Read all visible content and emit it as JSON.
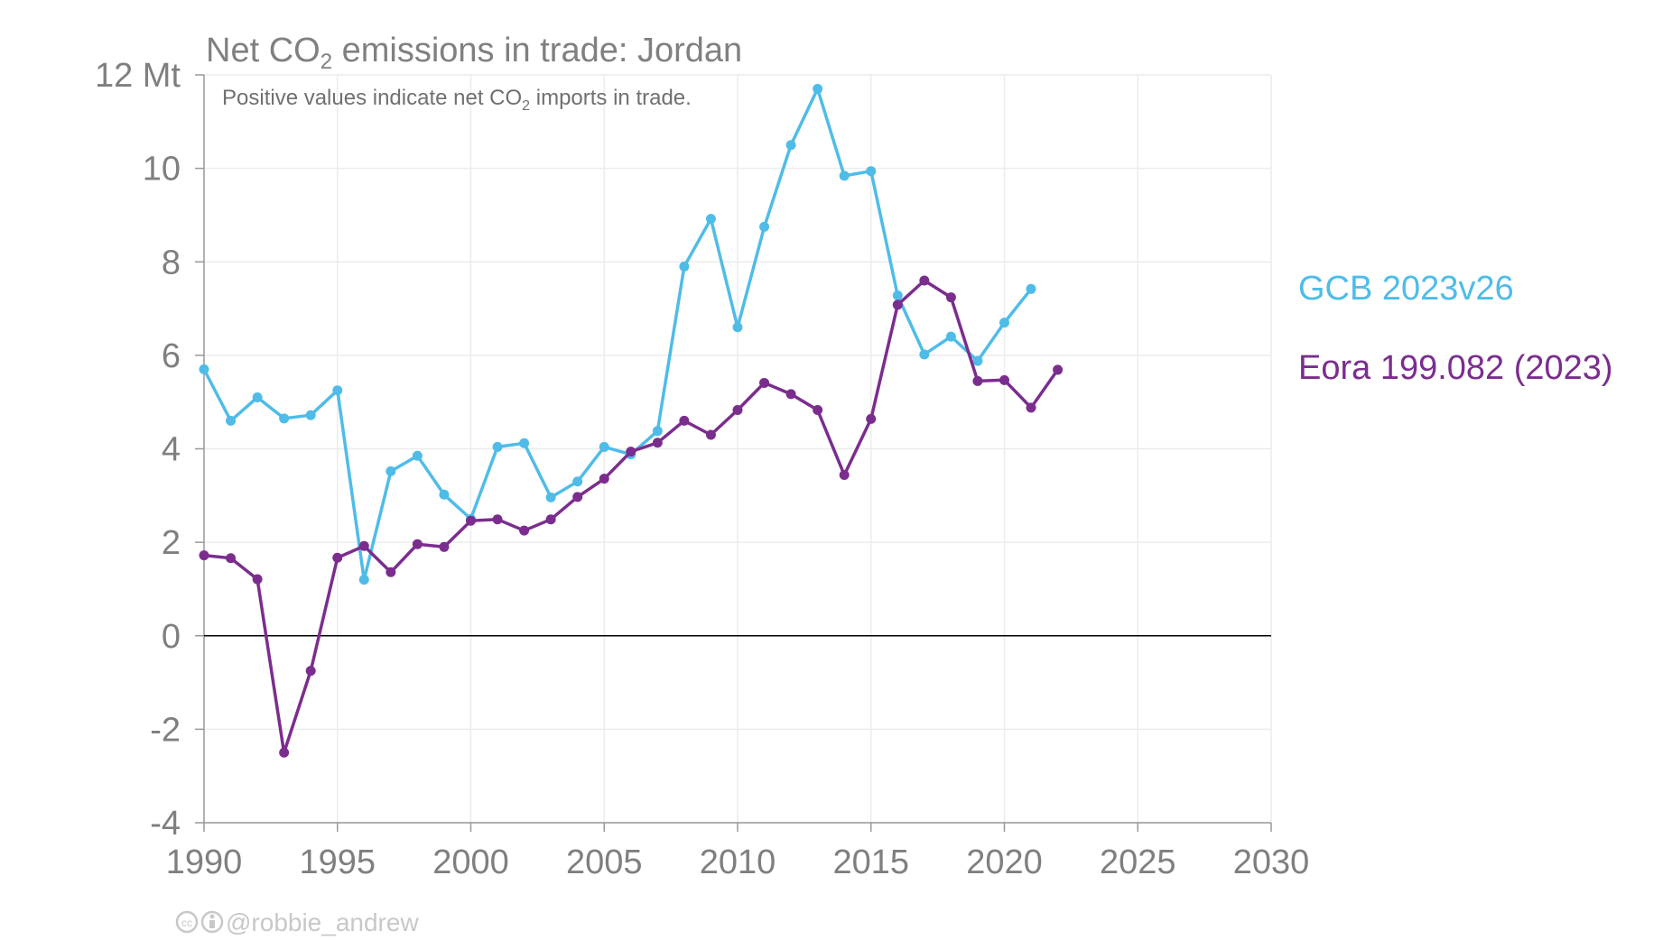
{
  "credit": "@robbie_andrew",
  "chart_data": {
    "type": "line",
    "title_main": "Net CO",
    "title_sub2": "2",
    "title_rest": " emissions in trade: Jordan",
    "subtitle_main": "Positive values indicate net CO",
    "subtitle_sub2": "2",
    "subtitle_rest": " imports in trade.",
    "y_unit_label": "12 Mt",
    "xlim": [
      1990,
      2030
    ],
    "ylim": [
      -4,
      12
    ],
    "x_ticks": [
      1990,
      1995,
      2000,
      2005,
      2010,
      2015,
      2020,
      2025,
      2030
    ],
    "y_ticks": [
      -4,
      -2,
      0,
      2,
      4,
      6,
      8,
      10
    ],
    "grid": true,
    "legend_position": "right",
    "series": [
      {
        "name": "GCB 2023v26",
        "color": "#4fbce8",
        "x": [
          1990,
          1991,
          1992,
          1993,
          1994,
          1995,
          1996,
          1997,
          1998,
          1999,
          2000,
          2001,
          2002,
          2003,
          2004,
          2005,
          2006,
          2007,
          2008,
          2009,
          2010,
          2011,
          2012,
          2013,
          2014,
          2015,
          2016,
          2017,
          2018,
          2019,
          2020,
          2021
        ],
        "values": [
          5.7,
          4.6,
          5.1,
          4.65,
          4.72,
          5.25,
          1.2,
          3.52,
          3.85,
          3.02,
          2.5,
          4.04,
          4.12,
          2.96,
          3.3,
          4.04,
          3.88,
          4.38,
          7.9,
          8.92,
          6.6,
          8.75,
          10.5,
          11.7,
          9.84,
          9.94,
          7.28,
          6.02,
          6.4,
          5.88,
          6.7,
          7.42
        ]
      },
      {
        "name": "Eora 199.082 (2023)",
        "color": "#7b2d8e",
        "x": [
          1990,
          1991,
          1992,
          1993,
          1994,
          1995,
          1996,
          1997,
          1998,
          1999,
          2000,
          2001,
          2002,
          2003,
          2004,
          2005,
          2006,
          2007,
          2008,
          2009,
          2010,
          2011,
          2012,
          2013,
          2014,
          2015,
          2016,
          2017,
          2018,
          2019,
          2020,
          2021,
          2022
        ],
        "values": [
          1.72,
          1.66,
          1.21,
          -2.5,
          -0.75,
          1.67,
          1.92,
          1.36,
          1.96,
          1.9,
          2.46,
          2.49,
          2.25,
          2.49,
          2.97,
          3.36,
          3.94,
          4.13,
          4.6,
          4.3,
          4.83,
          5.41,
          5.17,
          4.83,
          3.44,
          4.64,
          7.08,
          7.6,
          7.24,
          5.45,
          5.47,
          4.88,
          5.69
        ]
      }
    ]
  }
}
